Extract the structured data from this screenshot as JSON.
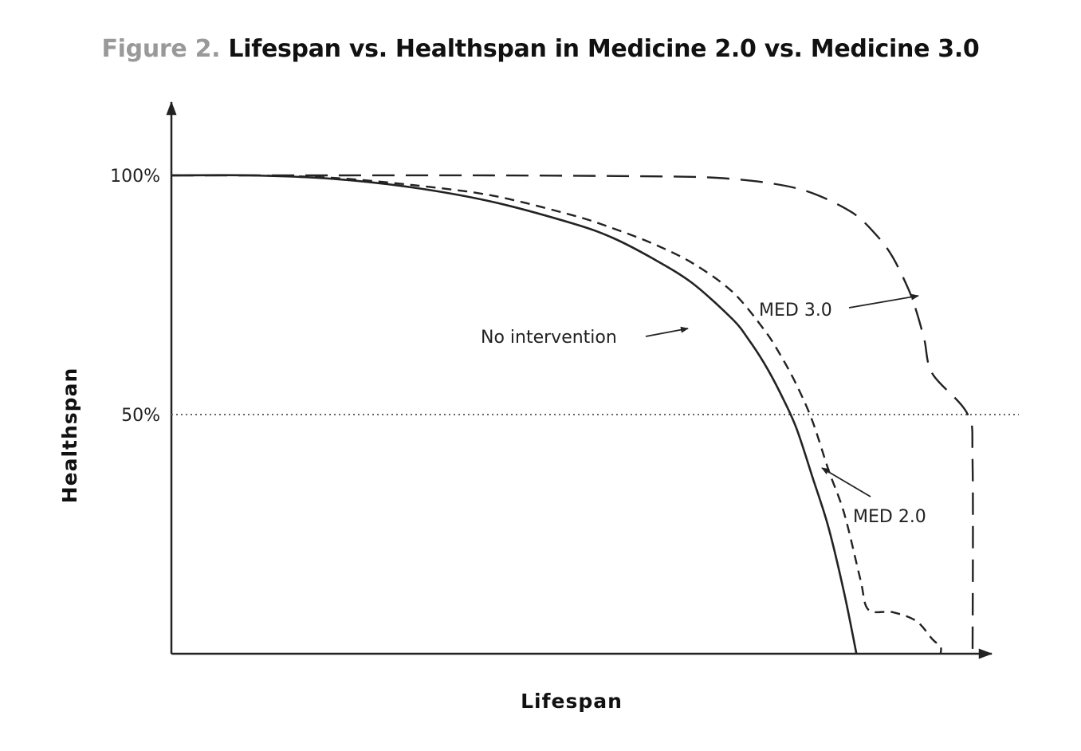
{
  "figure": {
    "label": "Figure 2.",
    "title": "Lifespan vs. Healthspan in Medicine 2.0 vs. Medicine 3.0"
  },
  "chart_data": {
    "type": "line",
    "title": "Figure 2. Lifespan vs. Healthspan in Medicine 2.0 vs. Medicine 3.0",
    "xlabel": "Lifespan",
    "ylabel": "Healthspan",
    "xlim": [
      0,
      100
    ],
    "ylim": [
      0,
      120
    ],
    "yticks": [
      {
        "value": 50,
        "label": "50%"
      },
      {
        "value": 100,
        "label": "100%"
      }
    ],
    "reference_line": {
      "y": 50,
      "style": "dotted"
    },
    "grid": false,
    "legend": "none",
    "series": [
      {
        "name": "No intervention",
        "style": "solid",
        "x": [
          0,
          10,
          20,
          30,
          40,
          50,
          55,
          60,
          65,
          70,
          72,
          74,
          76,
          78,
          80,
          82,
          84,
          85.5
        ],
        "y": [
          100,
          100,
          99.3,
          97.5,
          94.5,
          90,
          87,
          82.7,
          77.5,
          70,
          65.8,
          60.7,
          54.5,
          47.2,
          37,
          26.5,
          12.5,
          0
        ]
      },
      {
        "name": "MED 2.0",
        "style": "dashed",
        "x": [
          0,
          10,
          20,
          30,
          40,
          50,
          55,
          60,
          65,
          70,
          74,
          76,
          78,
          80,
          82,
          84,
          86,
          87,
          90,
          93,
          95,
          96,
          96
        ],
        "y": [
          100,
          100,
          99.5,
          98,
          95.8,
          91.7,
          89,
          85.8,
          81.7,
          75.7,
          67.7,
          62.5,
          56.3,
          48.7,
          38.5,
          29.2,
          15.5,
          9.2,
          8.7,
          6.8,
          3,
          1.5,
          0
        ]
      },
      {
        "name": "MED 3.0",
        "style": "long-dashed",
        "x": [
          0,
          20,
          40,
          60,
          68,
          75,
          80,
          85,
          88,
          90,
          92,
          93,
          94,
          95,
          99.4,
          100,
          100
        ],
        "y": [
          100,
          100,
          100,
          99.8,
          99.5,
          98.3,
          96.3,
          92.2,
          87.5,
          83,
          76.2,
          71.5,
          65.5,
          58.5,
          50,
          40,
          0
        ]
      }
    ],
    "annotations": [
      {
        "text": "No intervention",
        "series": "No intervention"
      },
      {
        "text": "MED 2.0",
        "series": "MED 2.0"
      },
      {
        "text": "MED 3.0",
        "series": "MED 3.0"
      }
    ]
  }
}
